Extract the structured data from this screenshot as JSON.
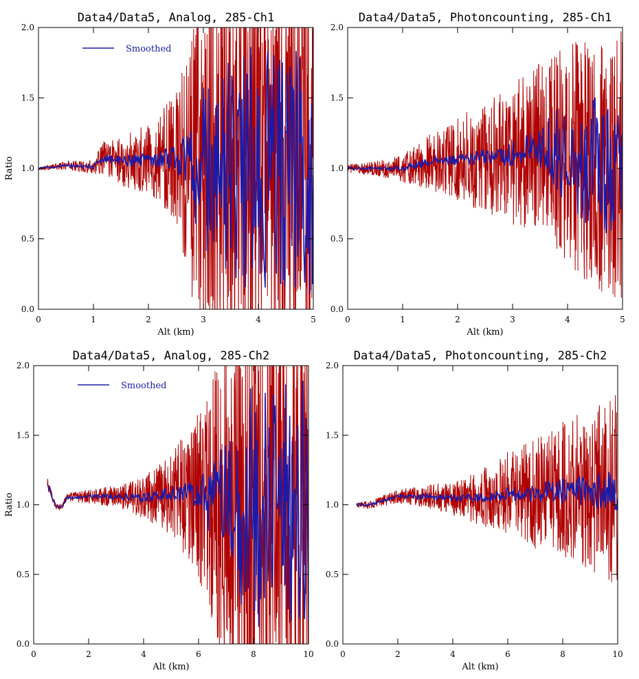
{
  "colors": {
    "raw": "#b00000",
    "smoothed": "#1a1aaa",
    "axes": "#000000"
  },
  "chart_data": [
    {
      "type": "line",
      "title": "Data4/Data5, Analog, 285-Ch1",
      "xlabel": "Alt (km)",
      "ylabel": "Ratio",
      "xlim": [
        0,
        5
      ],
      "ylim": [
        0.0,
        2.0
      ],
      "xticks": [
        0,
        1,
        2,
        3,
        4,
        5
      ],
      "xtick_labels": [
        "0",
        "1",
        "2",
        "3",
        "4",
        "5"
      ],
      "yticks": [
        0.0,
        0.5,
        1.0,
        1.5,
        2.0
      ],
      "ytick_labels": [
        "0.0",
        "0.5",
        "1.0",
        "1.5",
        "2.0"
      ],
      "legend": [
        "Smoothed"
      ],
      "legend_position": "top-left",
      "series": [
        {
          "name": "",
          "role": "raw",
          "x": [
            0,
            0.5,
            1.0,
            1.2,
            1.5,
            2.0,
            2.5,
            3.0,
            3.5,
            4.0,
            4.5,
            5.0
          ],
          "y": [
            1.0,
            1.02,
            1.01,
            1.08,
            1.05,
            1.07,
            1.08,
            1.0,
            1.0,
            1.0,
            1.0,
            1.0
          ],
          "spread": [
            0.01,
            0.03,
            0.05,
            0.12,
            0.18,
            0.25,
            0.45,
            1.3,
            1.5,
            1.5,
            1.5,
            1.5
          ]
        },
        {
          "name": "Smoothed",
          "role": "smoothed",
          "x": [
            0,
            0.5,
            1.0,
            1.2,
            1.5,
            2.0,
            2.5,
            3.0,
            3.5,
            4.0,
            4.5,
            5.0
          ],
          "y": [
            1.0,
            1.02,
            1.01,
            1.08,
            1.05,
            1.07,
            1.08,
            1.0,
            1.0,
            1.0,
            1.0,
            1.0
          ],
          "spread": [
            0.005,
            0.01,
            0.015,
            0.03,
            0.04,
            0.05,
            0.1,
            0.6,
            0.8,
            0.9,
            0.9,
            0.9
          ]
        }
      ]
    },
    {
      "type": "line",
      "title": "Data4/Data5, Photoncounting, 285-Ch1",
      "xlabel": "Alt (km)",
      "ylabel": "",
      "xlim": [
        0,
        5
      ],
      "ylim": [
        0.0,
        2.0
      ],
      "xticks": [
        0,
        1,
        2,
        3,
        4,
        5
      ],
      "xtick_labels": [
        "0",
        "1",
        "2",
        "3",
        "4",
        "5"
      ],
      "yticks": [
        0.0,
        0.5,
        1.0,
        1.5,
        2.0
      ],
      "ytick_labels": [
        "0.0",
        "0.5",
        "1.0",
        "1.5",
        "2.0"
      ],
      "legend": [],
      "legend_position": "",
      "series": [
        {
          "name": "",
          "role": "raw",
          "x": [
            0,
            0.5,
            1.0,
            1.5,
            2.0,
            2.5,
            3.0,
            3.5,
            4.0,
            4.5,
            5.0
          ],
          "y": [
            1.0,
            1.0,
            1.0,
            1.05,
            1.06,
            1.08,
            1.1,
            1.15,
            1.1,
            1.05,
            1.0
          ],
          "spread": [
            0.03,
            0.05,
            0.1,
            0.2,
            0.3,
            0.4,
            0.5,
            0.6,
            0.8,
            0.9,
            1.0
          ]
        },
        {
          "name": "Smoothed",
          "role": "smoothed",
          "x": [
            0,
            0.5,
            1.0,
            1.5,
            2.0,
            2.5,
            3.0,
            3.5,
            4.0,
            4.5,
            5.0
          ],
          "y": [
            1.0,
            1.0,
            1.0,
            1.05,
            1.06,
            1.08,
            1.1,
            1.15,
            1.1,
            1.05,
            1.0
          ],
          "spread": [
            0.01,
            0.01,
            0.02,
            0.03,
            0.04,
            0.06,
            0.1,
            0.15,
            0.4,
            0.5,
            0.5
          ]
        }
      ]
    },
    {
      "type": "line",
      "title": "Data4/Data5, Analog, 285-Ch2",
      "xlabel": "Alt (km)",
      "ylabel": "Ratio",
      "xlim": [
        0,
        10
      ],
      "ylim": [
        0.0,
        2.0
      ],
      "xticks": [
        0,
        2,
        4,
        6,
        8,
        10
      ],
      "xtick_labels": [
        "0",
        "2",
        "4",
        "6",
        "8",
        "10"
      ],
      "yticks": [
        0.0,
        0.5,
        1.0,
        1.5,
        2.0
      ],
      "ytick_labels": [
        "0.0",
        "0.5",
        "1.0",
        "1.5",
        "2.0"
      ],
      "legend": [
        "Smoothed"
      ],
      "legend_position": "top-left",
      "series": [
        {
          "name": "",
          "role": "raw",
          "x": [
            0.5,
            0.8,
            1.0,
            1.2,
            2.0,
            3.0,
            4.0,
            5.0,
            6.0,
            7.0,
            8.0,
            9.0,
            10.0
          ],
          "y": [
            1.15,
            0.99,
            0.98,
            1.05,
            1.06,
            1.06,
            1.05,
            1.08,
            1.08,
            1.0,
            1.0,
            1.0,
            1.0
          ],
          "spread": [
            0.05,
            0.02,
            0.02,
            0.03,
            0.05,
            0.08,
            0.15,
            0.3,
            0.6,
            1.2,
            1.5,
            1.5,
            1.5
          ]
        },
        {
          "name": "Smoothed",
          "role": "smoothed",
          "x": [
            0.5,
            0.8,
            1.0,
            1.2,
            2.0,
            3.0,
            4.0,
            5.0,
            6.0,
            7.0,
            8.0,
            9.0,
            10.0
          ],
          "y": [
            1.15,
            0.99,
            0.98,
            1.05,
            1.06,
            1.06,
            1.05,
            1.08,
            1.08,
            1.0,
            1.0,
            1.0,
            1.0
          ],
          "spread": [
            0.02,
            0.01,
            0.01,
            0.01,
            0.01,
            0.02,
            0.03,
            0.05,
            0.1,
            0.5,
            0.9,
            0.9,
            0.9
          ]
        }
      ]
    },
    {
      "type": "line",
      "title": "Data4/Data5, Photoncounting, 285-Ch2",
      "xlabel": "Alt (km)",
      "ylabel": "",
      "xlim": [
        0,
        10
      ],
      "ylim": [
        0.0,
        2.0
      ],
      "xticks": [
        0,
        2,
        4,
        6,
        8,
        10
      ],
      "xtick_labels": [
        "0",
        "2",
        "4",
        "6",
        "8",
        "10"
      ],
      "yticks": [
        0.0,
        0.5,
        1.0,
        1.5,
        2.0
      ],
      "ytick_labels": [
        "0.0",
        "0.5",
        "1.0",
        "1.5",
        "2.0"
      ],
      "legend": [],
      "legend_position": "",
      "series": [
        {
          "name": "",
          "role": "raw",
          "x": [
            0.5,
            1.0,
            2.0,
            3.0,
            4.0,
            5.0,
            6.0,
            7.0,
            8.0,
            9.0,
            10.0
          ],
          "y": [
            1.0,
            1.0,
            1.06,
            1.06,
            1.05,
            1.05,
            1.08,
            1.08,
            1.1,
            1.1,
            1.1
          ],
          "spread": [
            0.02,
            0.03,
            0.05,
            0.08,
            0.12,
            0.2,
            0.3,
            0.4,
            0.5,
            0.6,
            0.7
          ]
        },
        {
          "name": "Smoothed",
          "role": "smoothed",
          "x": [
            0.5,
            1.0,
            2.0,
            3.0,
            4.0,
            5.0,
            6.0,
            7.0,
            8.0,
            9.0,
            10.0
          ],
          "y": [
            1.0,
            1.0,
            1.06,
            1.06,
            1.05,
            1.05,
            1.08,
            1.08,
            1.1,
            1.1,
            1.1
          ],
          "spread": [
            0.01,
            0.01,
            0.01,
            0.02,
            0.02,
            0.03,
            0.05,
            0.07,
            0.1,
            0.12,
            0.15
          ]
        }
      ]
    }
  ]
}
